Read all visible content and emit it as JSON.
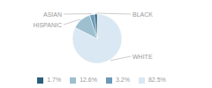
{
  "chart_data": {
    "type": "pie",
    "categories": [
      "WHITE",
      "HISPANIC",
      "ASIAN",
      "BLACK"
    ],
    "values": [
      82.5,
      12.6,
      3.2,
      1.7
    ],
    "value_labels": [
      "82.5%",
      "12.6%",
      "3.2%",
      "1.7%"
    ],
    "colors": [
      "#d9e8f2",
      "#9dbfcf",
      "#6b9ab8",
      "#2c5f7a"
    ],
    "legend": "bottom"
  }
}
